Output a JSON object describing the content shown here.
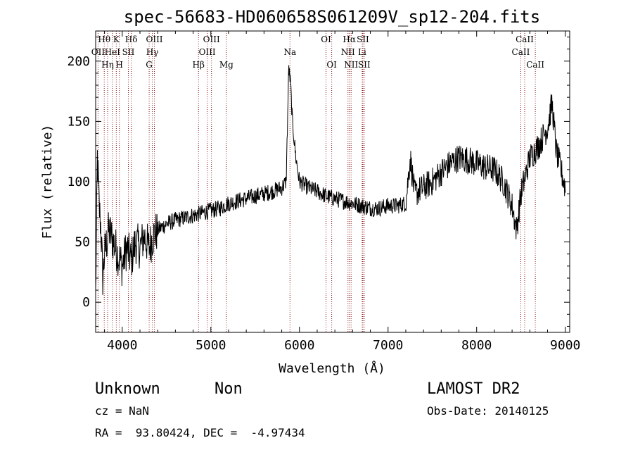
{
  "chart_data": {
    "type": "line",
    "title": "spec-56683-HD060658S061209V_sp12-204.fits",
    "xlabel": "Wavelength (Å)",
    "ylabel": "Flux (relative)",
    "xlim": [
      3700,
      9050
    ],
    "ylim": [
      -25,
      225
    ],
    "xticks": [
      4000,
      5000,
      6000,
      7000,
      8000,
      9000
    ],
    "yticks": [
      0,
      50,
      100,
      150,
      200
    ],
    "grid": false,
    "line_color": "#000000",
    "marker_color": "#8b1a1a",
    "spectrum_anchors": [
      [
        3700,
        5
      ],
      [
        3720,
        120
      ],
      [
        3740,
        80
      ],
      [
        3760,
        60
      ],
      [
        3780,
        20
      ],
      [
        3800,
        40
      ],
      [
        3850,
        60
      ],
      [
        3900,
        50
      ],
      [
        3950,
        40
      ],
      [
        4000,
        30
      ],
      [
        4050,
        45
      ],
      [
        4100,
        35
      ],
      [
        4150,
        50
      ],
      [
        4200,
        45
      ],
      [
        4250,
        55
      ],
      [
        4300,
        45
      ],
      [
        4350,
        55
      ],
      [
        4400,
        60
      ],
      [
        4500,
        65
      ],
      [
        4600,
        68
      ],
      [
        4700,
        70
      ],
      [
        4800,
        72
      ],
      [
        4900,
        74
      ],
      [
        5000,
        76
      ],
      [
        5100,
        78
      ],
      [
        5200,
        82
      ],
      [
        5300,
        84
      ],
      [
        5400,
        86
      ],
      [
        5500,
        88
      ],
      [
        5600,
        90
      ],
      [
        5700,
        92
      ],
      [
        5800,
        95
      ],
      [
        5850,
        100
      ],
      [
        5880,
        195
      ],
      [
        5900,
        180
      ],
      [
        5920,
        150
      ],
      [
        5960,
        120
      ],
      [
        6000,
        100
      ],
      [
        6100,
        95
      ],
      [
        6200,
        92
      ],
      [
        6300,
        88
      ],
      [
        6400,
        86
      ],
      [
        6500,
        84
      ],
      [
        6600,
        82
      ],
      [
        6700,
        80
      ],
      [
        6800,
        78
      ],
      [
        6900,
        78
      ],
      [
        7000,
        80
      ],
      [
        7100,
        80
      ],
      [
        7200,
        82
      ],
      [
        7250,
        120
      ],
      [
        7300,
        90
      ],
      [
        7400,
        95
      ],
      [
        7500,
        100
      ],
      [
        7600,
        108
      ],
      [
        7700,
        115
      ],
      [
        7800,
        120
      ],
      [
        7900,
        118
      ],
      [
        8000,
        115
      ],
      [
        8100,
        112
      ],
      [
        8200,
        110
      ],
      [
        8300,
        100
      ],
      [
        8400,
        80
      ],
      [
        8450,
        60
      ],
      [
        8500,
        90
      ],
      [
        8600,
        120
      ],
      [
        8700,
        130
      ],
      [
        8800,
        145
      ],
      [
        8850,
        165
      ],
      [
        8900,
        125
      ],
      [
        8950,
        110
      ],
      [
        9000,
        95
      ]
    ],
    "spectral_lines": [
      {
        "label": "Hθ",
        "wavelength": 3797,
        "row": 0
      },
      {
        "label": "OII",
        "wavelength": 3727,
        "row": 1
      },
      {
        "label": "Hη",
        "wavelength": 3835,
        "row": 2
      },
      {
        "label": "K",
        "wavelength": 3933,
        "row": 0
      },
      {
        "label": "HeI",
        "wavelength": 3889,
        "row": 1
      },
      {
        "label": "SII",
        "wavelength": 4069,
        "row": 1
      },
      {
        "label": "H",
        "wavelength": 3968,
        "row": 2
      },
      {
        "label": "Hδ",
        "wavelength": 4102,
        "row": 0
      },
      {
        "label": "OIII",
        "wavelength": 4363,
        "row": 0
      },
      {
        "label": "Hγ",
        "wavelength": 4340,
        "row": 1
      },
      {
        "label": "G",
        "wavelength": 4304,
        "row": 2
      },
      {
        "label": "Hβ",
        "wavelength": 4861,
        "row": 2
      },
      {
        "label": "OIII",
        "wavelength": 5007,
        "row": 0
      },
      {
        "label": "OIII",
        "wavelength": 4959,
        "row": 1
      },
      {
        "label": "Mg",
        "wavelength": 5175,
        "row": 2
      },
      {
        "label": "Na",
        "wavelength": 5893,
        "row": 1
      },
      {
        "label": "OI",
        "wavelength": 6300,
        "row": 0
      },
      {
        "label": "OI",
        "wavelength": 6364,
        "row": 2
      },
      {
        "label": "Hα",
        "wavelength": 6563,
        "row": 0
      },
      {
        "label": "NII",
        "wavelength": 6548,
        "row": 1
      },
      {
        "label": "NII",
        "wavelength": 6583,
        "row": 2
      },
      {
        "label": "SII",
        "wavelength": 6716,
        "row": 0
      },
      {
        "label": "Li",
        "wavelength": 6708,
        "row": 1
      },
      {
        "label": "SII",
        "wavelength": 6731,
        "row": 2
      },
      {
        "label": "CaII",
        "wavelength": 8542,
        "row": 0
      },
      {
        "label": "CaII",
        "wavelength": 8498,
        "row": 1
      },
      {
        "label": "CaII",
        "wavelength": 8662,
        "row": 2
      }
    ]
  },
  "info": {
    "object_class": "Unknown",
    "subclass": "Non",
    "cz": "cz = NaN",
    "coords": "RA =  93.80424, DEC =  -4.97434",
    "survey": "LAMOST DR2",
    "obs_date": "Obs-Date: 20140125"
  }
}
